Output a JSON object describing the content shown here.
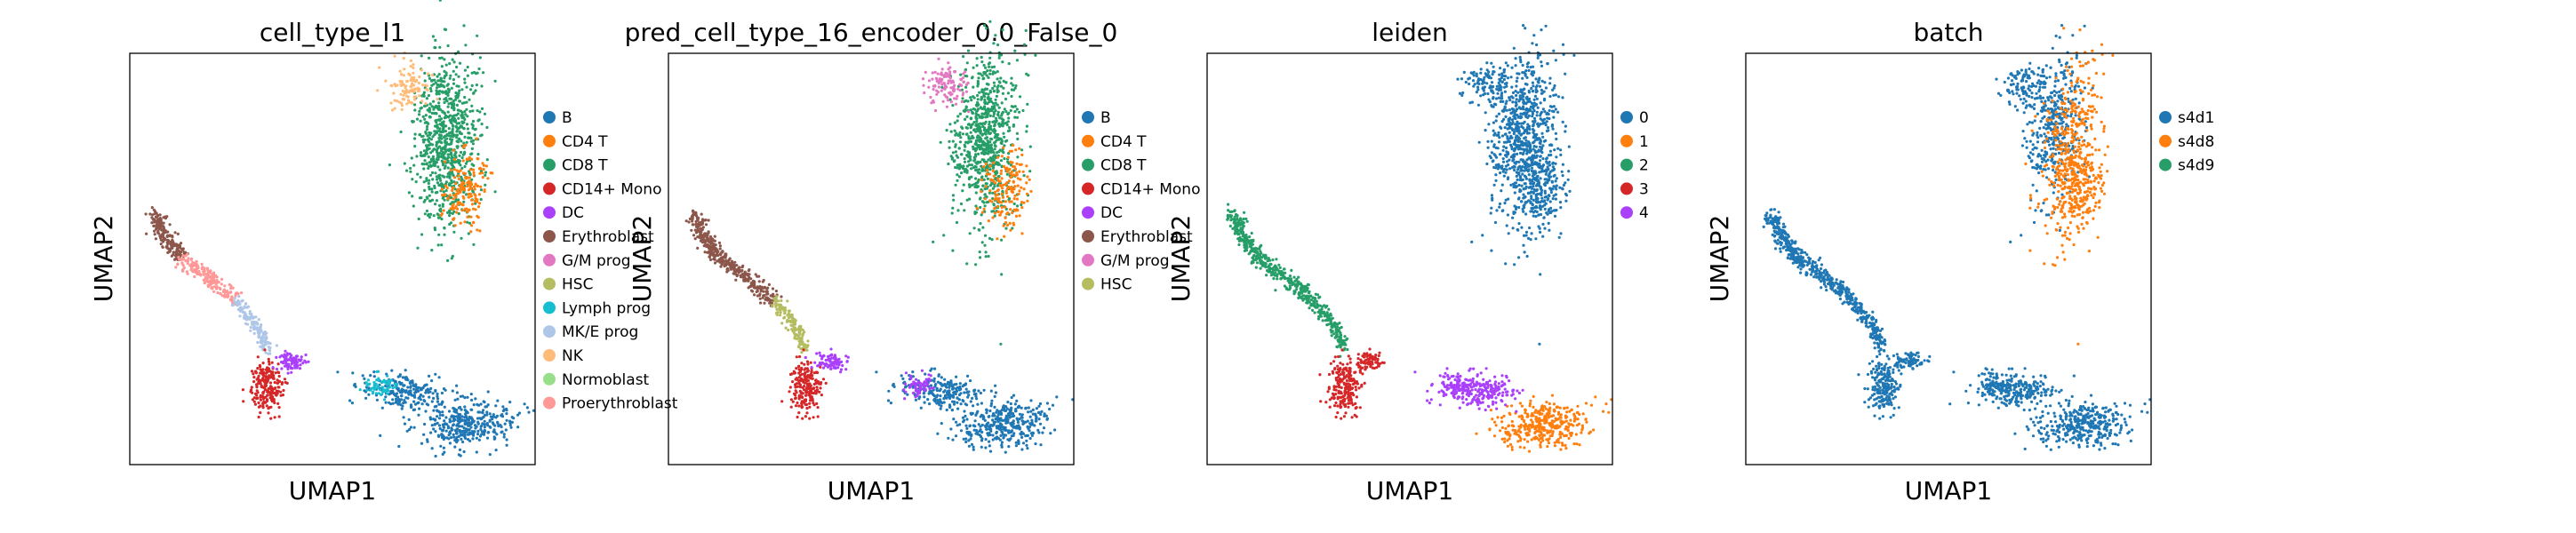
{
  "chart_data": [
    {
      "type": "scatter",
      "title": "cell_type_l1",
      "xlabel": "UMAP1",
      "ylabel": "UMAP2",
      "grid": false,
      "legend": "right",
      "series": [
        {
          "name": "B",
          "color": "#1f77b4"
        },
        {
          "name": "CD4 T",
          "color": "#ff7f0e"
        },
        {
          "name": "CD8 T",
          "color": "#279e68"
        },
        {
          "name": "CD14+ Mono",
          "color": "#d62728"
        },
        {
          "name": "DC",
          "color": "#aa40fc"
        },
        {
          "name": "Erythroblast",
          "color": "#8c564b"
        },
        {
          "name": "G/M prog",
          "color": "#e377c2"
        },
        {
          "name": "HSC",
          "color": "#b5bd61"
        },
        {
          "name": "Lymph prog",
          "color": "#17becf"
        },
        {
          "name": "MK/E prog",
          "color": "#aec7e8"
        },
        {
          "name": "NK",
          "color": "#ffbb78"
        },
        {
          "name": "Normoblast",
          "color": "#98df8a"
        },
        {
          "name": "Proerythroblast",
          "color": "#ff9896"
        }
      ]
    },
    {
      "type": "scatter",
      "title": "pred_cell_type_16_encoder_0.0_False_0",
      "xlabel": "UMAP1",
      "ylabel": "UMAP2",
      "grid": false,
      "legend": "right",
      "series": [
        {
          "name": "B",
          "color": "#1f77b4"
        },
        {
          "name": "CD4 T",
          "color": "#ff7f0e"
        },
        {
          "name": "CD8 T",
          "color": "#279e68"
        },
        {
          "name": "CD14+ Mono",
          "color": "#d62728"
        },
        {
          "name": "DC",
          "color": "#aa40fc"
        },
        {
          "name": "Erythroblast",
          "color": "#8c564b"
        },
        {
          "name": "G/M prog",
          "color": "#e377c2"
        },
        {
          "name": "HSC",
          "color": "#b5bd61"
        }
      ]
    },
    {
      "type": "scatter",
      "title": "leiden",
      "xlabel": "UMAP1",
      "ylabel": "UMAP2",
      "grid": false,
      "legend": "right",
      "series": [
        {
          "name": "0",
          "color": "#1f77b4"
        },
        {
          "name": "1",
          "color": "#ff7f0e"
        },
        {
          "name": "2",
          "color": "#279e68"
        },
        {
          "name": "3",
          "color": "#d62728"
        },
        {
          "name": "4",
          "color": "#aa40fc"
        }
      ]
    },
    {
      "type": "scatter",
      "title": "batch",
      "xlabel": "UMAP1",
      "ylabel": "UMAP2",
      "grid": false,
      "legend": "right",
      "series": [
        {
          "name": "s4d1",
          "color": "#1f77b4"
        },
        {
          "name": "s4d8",
          "color": "#ff7f0e"
        },
        {
          "name": "s4d9",
          "color": "#279e68"
        }
      ]
    }
  ]
}
